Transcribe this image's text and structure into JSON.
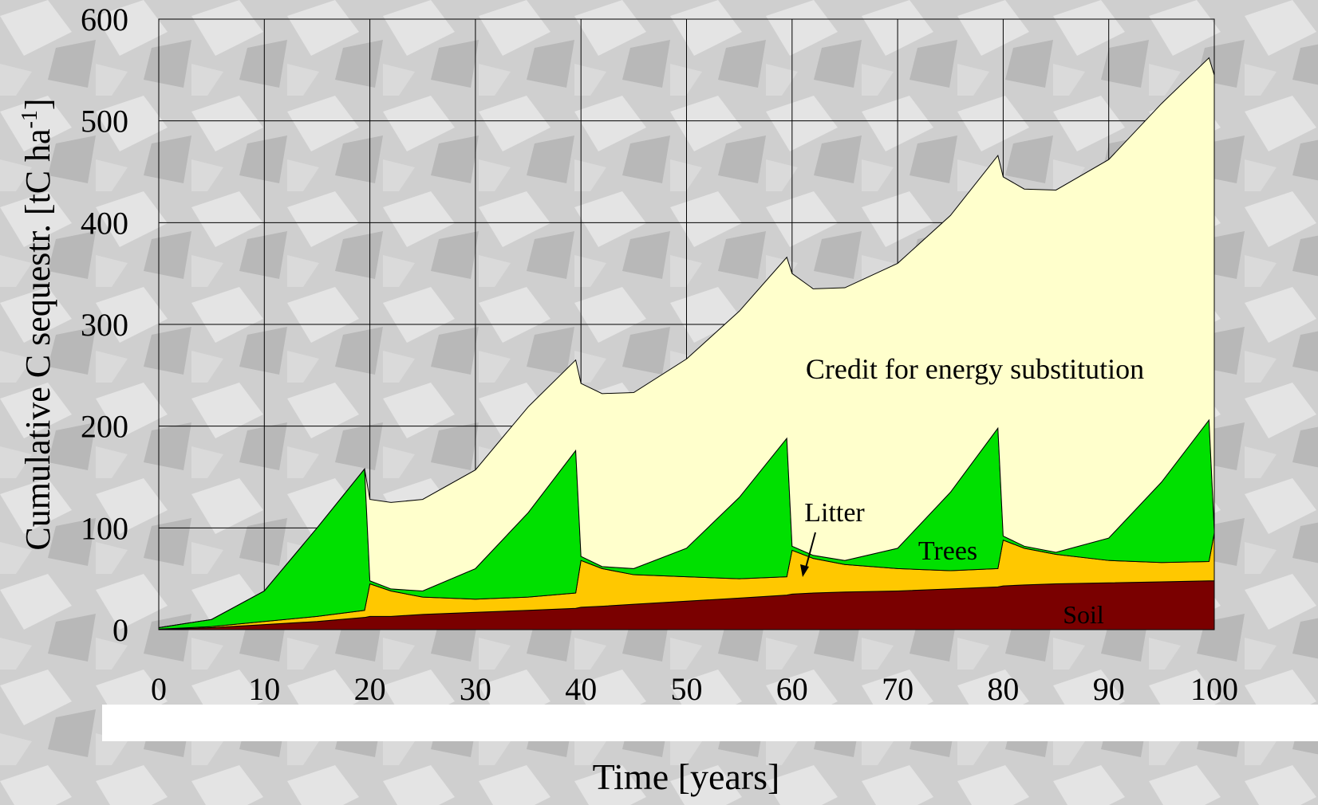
{
  "chart_data": {
    "type": "stacked_area",
    "ylabel": "Cumulative C sequestr. [tC ha",
    "ylabel_superscript": "-1",
    "ylabel_end": "]",
    "xlabel": "Time [years]",
    "x": [
      0,
      5,
      10,
      15,
      19.5,
      20,
      22,
      25,
      30,
      35,
      39.5,
      40,
      42,
      45,
      50,
      55,
      59.5,
      60,
      62,
      65,
      70,
      75,
      79.5,
      80,
      82,
      85,
      90,
      95,
      99.5,
      100
    ],
    "series": [
      {
        "name": "Soil",
        "color": "#7a0000",
        "values": [
          0,
          2,
          5,
          8,
          12,
          13,
          13,
          15,
          17,
          19,
          21,
          22,
          23,
          25,
          28,
          31,
          34,
          35,
          36,
          37,
          38,
          40,
          42,
          43,
          44,
          45,
          46,
          47,
          48,
          48
        ]
      },
      {
        "name": "Litter",
        "color": "#ffc800",
        "values": [
          0.5,
          1,
          3,
          5,
          7,
          32,
          25,
          17,
          13,
          13,
          15,
          46,
          37,
          29,
          24,
          19,
          18,
          43,
          34,
          27,
          22,
          18,
          18,
          45,
          36,
          29,
          22,
          19,
          19,
          47
        ]
      },
      {
        "name": "Trees",
        "color": "#00e000",
        "values": [
          1.5,
          7,
          30,
          87,
          139,
          3,
          2,
          6,
          30,
          83,
          140,
          4,
          2,
          6,
          28,
          80,
          136,
          4,
          3,
          4,
          20,
          77,
          138,
          4,
          2,
          2,
          22,
          79,
          139,
          3
        ]
      },
      {
        "name": "Credit for energy substitution",
        "color": "#ffffcc",
        "values": [
          0,
          0,
          0,
          0,
          0,
          80,
          85,
          90,
          97,
          104,
          89,
          170,
          170,
          173,
          186,
          183,
          178,
          268,
          262,
          268,
          280,
          272,
          268,
          353,
          351,
          356,
          372,
          372,
          356,
          447
        ]
      }
    ],
    "xlim": [
      0,
      100
    ],
    "xticks": [
      0,
      10,
      20,
      30,
      40,
      50,
      60,
      70,
      80,
      90,
      100
    ],
    "ylim": [
      0,
      600
    ],
    "yticks": [
      0,
      100,
      200,
      300,
      400,
      500,
      600
    ],
    "grid": true
  }
}
